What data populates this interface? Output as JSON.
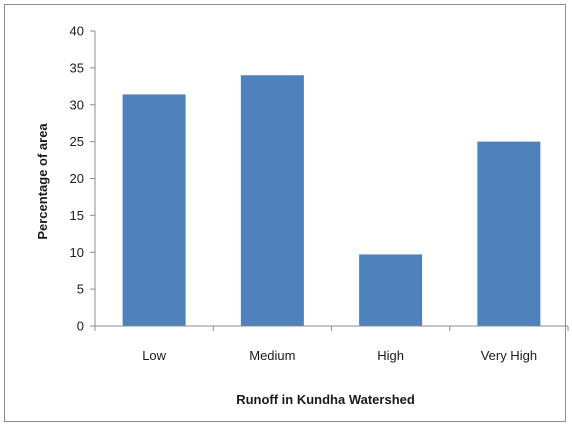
{
  "chart_data": {
    "type": "bar",
    "categories": [
      "Low",
      "Medium",
      "High",
      "Very High"
    ],
    "values": [
      31.4,
      34.0,
      9.7,
      25.0
    ],
    "xlabel": "Runoff in Kundha Watershed",
    "ylabel": "Percentage  of area",
    "ylim": [
      0,
      40
    ],
    "yticks": [
      0,
      5,
      10,
      15,
      20,
      25,
      30,
      35,
      40
    ],
    "grid": false,
    "legend": "none",
    "bar_color": "#4f81bd"
  }
}
